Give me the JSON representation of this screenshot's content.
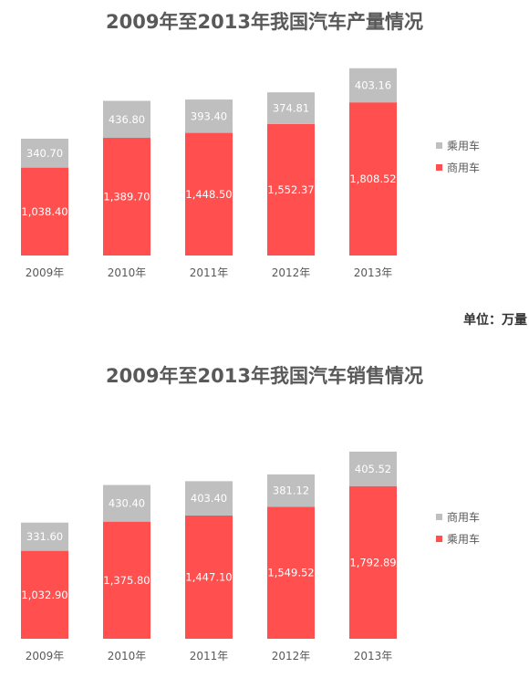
{
  "unit": "单位：万量",
  "chart_data": [
    {
      "type": "bar",
      "stacked": true,
      "title": "2009年至2013年我国汽车产量情况",
      "categories": [
        "2009年",
        "2010年",
        "2011年",
        "2012年",
        "2013年"
      ],
      "series": [
        {
          "name": "商用车",
          "color": "#ff4f4f",
          "values": [
            1038.4,
            1389.7,
            1448.5,
            1552.37,
            1808.52
          ],
          "labels": [
            "1,038.40",
            "1,389.70",
            "1,448.50",
            "1,552.37",
            "1,808.52"
          ]
        },
        {
          "name": "乘用车",
          "color": "#bfbfbf",
          "values": [
            340.7,
            436.8,
            393.4,
            374.81,
            403.16
          ],
          "labels": [
            "340.70",
            "436.80",
            "393.40",
            "374.81",
            "403.16"
          ]
        }
      ],
      "legend": {
        "position": "right",
        "order": [
          "乘用车",
          "商用车"
        ]
      },
      "grid": false,
      "ylim": [
        0,
        2250
      ]
    },
    {
      "type": "bar",
      "stacked": true,
      "title": "2009年至2013年我国汽车销售情况",
      "categories": [
        "2009年",
        "2010年",
        "2011年",
        "2012年",
        "2013年"
      ],
      "series": [
        {
          "name": "乘用车",
          "color": "#ff4f4f",
          "values": [
            1032.9,
            1375.8,
            1447.1,
            1549.52,
            1792.89
          ],
          "labels": [
            "1,032.90",
            "1,375.80",
            "1,447.10",
            "1,549.52",
            "1,792.89"
          ]
        },
        {
          "name": "商用车",
          "color": "#bfbfbf",
          "values": [
            331.6,
            430.4,
            403.4,
            381.12,
            405.52
          ],
          "labels": [
            "331.60",
            "430.40",
            "403.40",
            "381.12",
            "405.52"
          ]
        }
      ],
      "legend": {
        "position": "right",
        "order": [
          "商用车",
          "乘用车"
        ]
      },
      "grid": false,
      "ylim": [
        0,
        2250
      ]
    }
  ]
}
